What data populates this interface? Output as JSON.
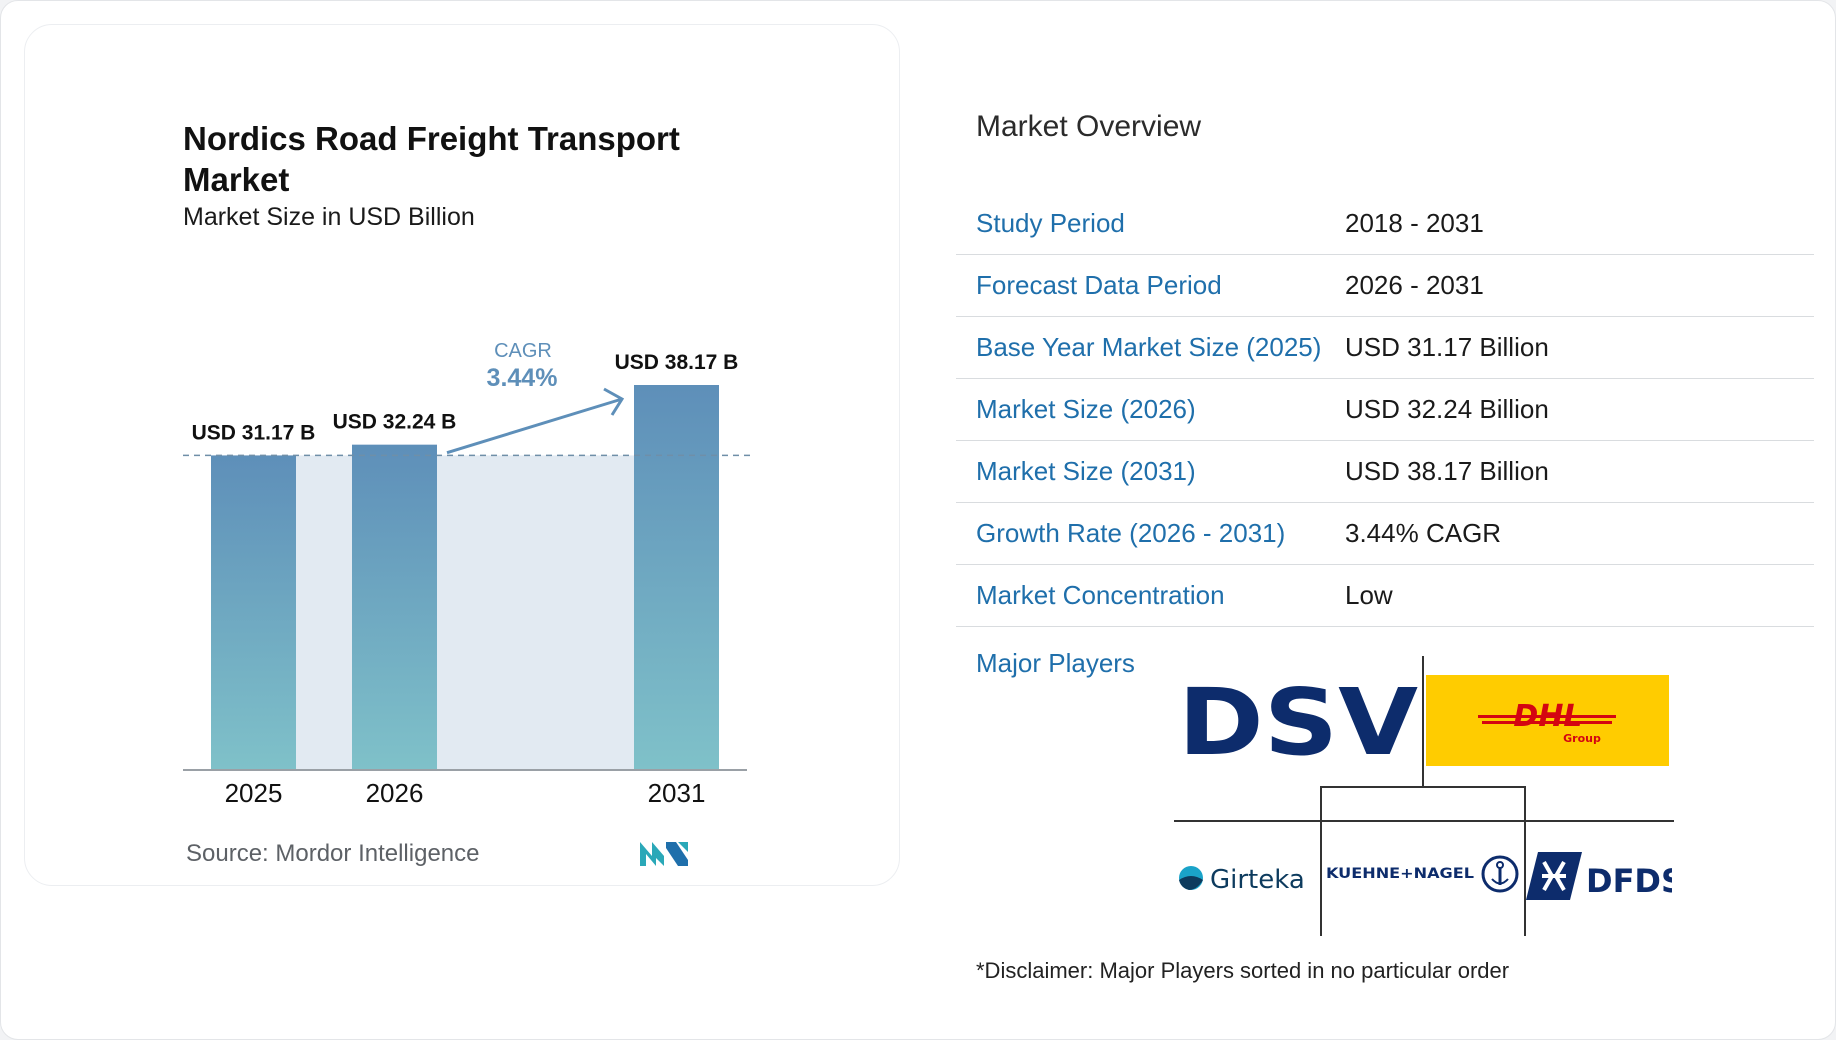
{
  "chart": {
    "title": "Nordics Road Freight Transport Market",
    "subtitle": "Market Size in USD Billion",
    "source": "Source:  Mordor Intelligence",
    "brand_icon": "mordor-intelligence-logo"
  },
  "chart_data": {
    "type": "bar",
    "categories": [
      "2025",
      "2026",
      "2031"
    ],
    "values": [
      31.17,
      32.24,
      38.17
    ],
    "data_labels": [
      "USD 31.17 B",
      "USD 32.24 B",
      "USD 38.17 B"
    ],
    "cagr_label": "CAGR",
    "cagr_value": "3.44%",
    "title": "Nordics Road Freight Transport Market",
    "subtitle": "Market Size in USD Billion",
    "grid": false,
    "colors": {
      "bar_top": "#5e8fb9",
      "bar_bottom": "#7fc1c9",
      "band": "#e2eaf2",
      "arrow": "#5e8fb9"
    }
  },
  "overview": {
    "title": "Market Overview",
    "rows": [
      {
        "label": "Study Period",
        "value": "2018 - 2031"
      },
      {
        "label": "Forecast Data Period",
        "value": "2026 - 2031"
      },
      {
        "label": "Base Year Market Size (2025)",
        "value": "USD 31.17 Billion"
      },
      {
        "label": "Market Size (2026)",
        "value": "USD 32.24 Billion"
      },
      {
        "label": "Market Size (2031)",
        "value": "USD 38.17 Billion"
      },
      {
        "label": "Growth Rate (2026 - 2031)",
        "value": "3.44% CAGR"
      },
      {
        "label": "Market Concentration",
        "value": "Low"
      }
    ]
  },
  "players": {
    "label": "Major Players",
    "logos": [
      {
        "name": "DSV",
        "text": "DSV",
        "color": "#0d2c6c"
      },
      {
        "name": "DHL Group",
        "text": "DHL",
        "sub": "Group",
        "bg": "#ffcc00",
        "color": "#d40511"
      },
      {
        "name": "Girteka",
        "text": "Girteka",
        "color": "#0d3b5e"
      },
      {
        "name": "Kuehne+Nagel",
        "text": "KUEHNE+NAGEL",
        "color": "#0d2c6c"
      },
      {
        "name": "DFDS",
        "text": "DFDS",
        "color": "#0d2c6c"
      }
    ],
    "disclaimer": "*Disclaimer: Major Players sorted in no particular order"
  }
}
